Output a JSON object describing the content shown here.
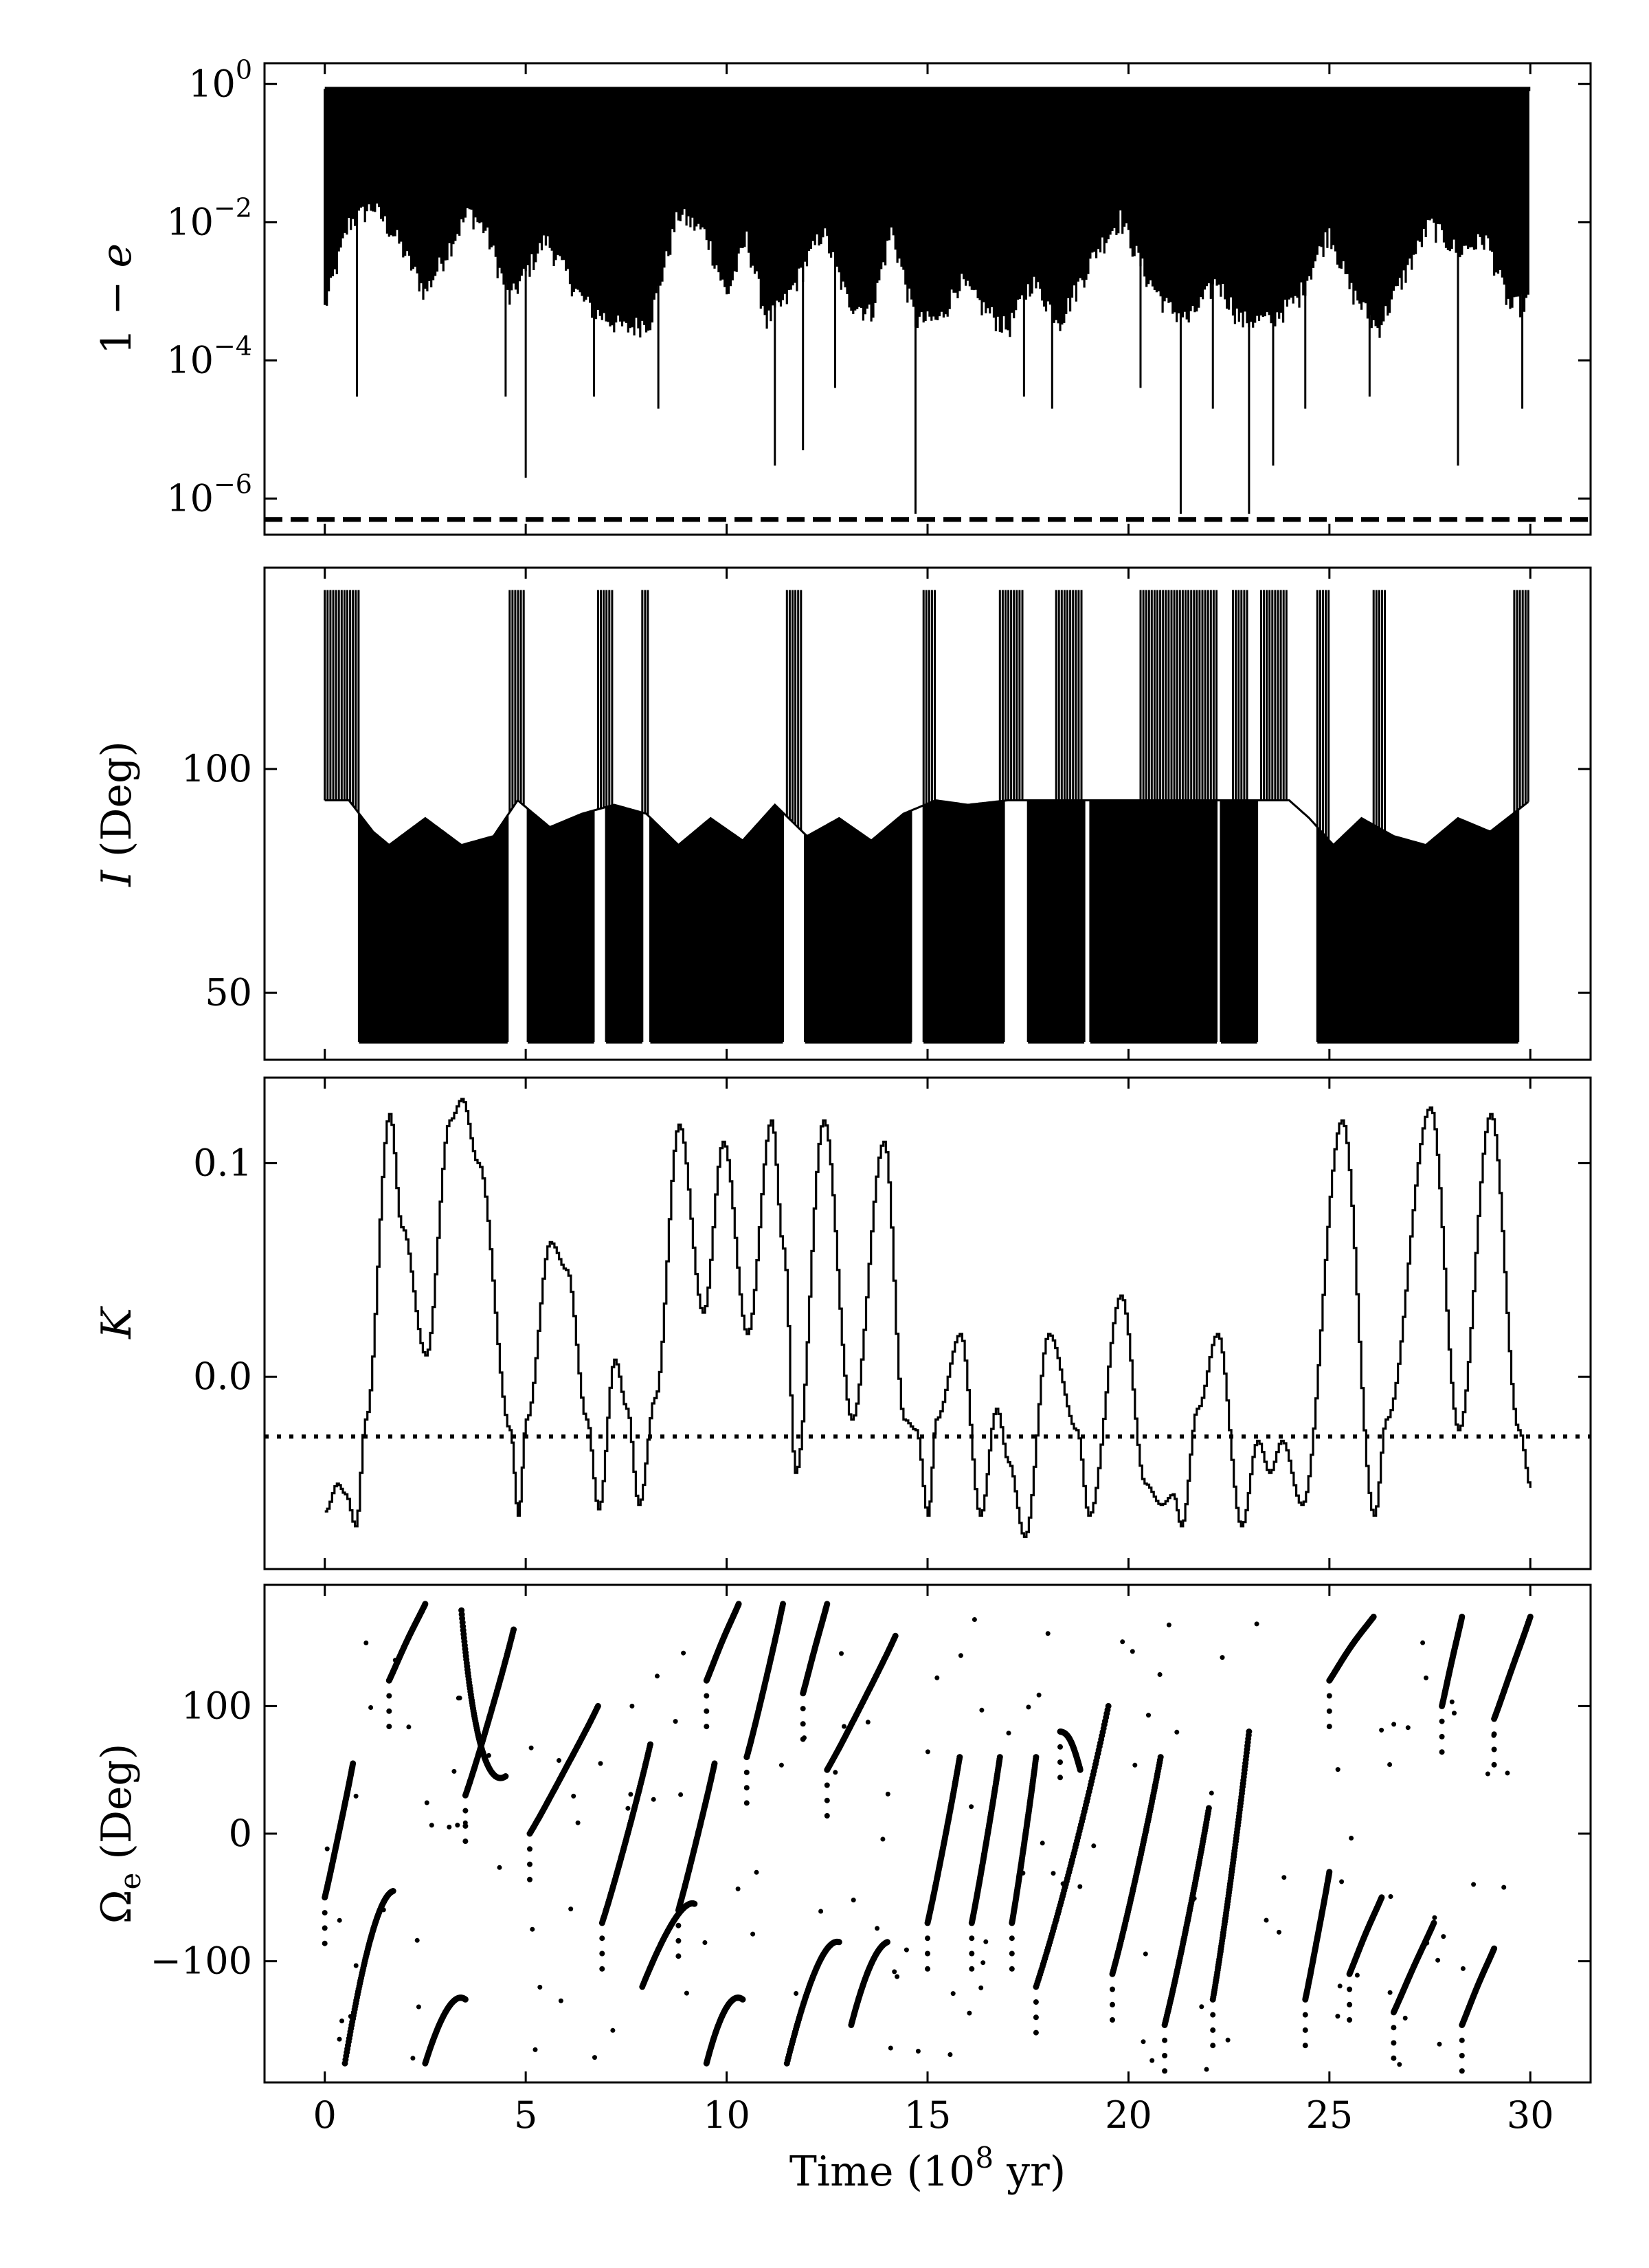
{
  "chart_data": [
    {
      "type": "line",
      "panel": "eccentricity",
      "ylabel": "1 − e",
      "yscale": "log",
      "ylim": [
        3e-07,
        2
      ],
      "xlim": [
        -1.5,
        31.5
      ],
      "yticks": [
        1,
        0.01,
        0.0001,
        1e-06
      ],
      "ytick_labels": [
        "10^0",
        "10^-2",
        "10^-4",
        "10^-6"
      ],
      "upper_value": 0.85,
      "envelope": [
        [
          0.0,
          0.0006
        ],
        [
          0.6,
          0.01
        ],
        [
          1.2,
          0.018
        ],
        [
          1.8,
          0.006
        ],
        [
          2.5,
          0.001
        ],
        [
          3.2,
          0.006
        ],
        [
          3.6,
          0.015
        ],
        [
          4.0,
          0.008
        ],
        [
          4.6,
          0.0008
        ],
        [
          5.5,
          0.006
        ],
        [
          6.4,
          0.0008
        ],
        [
          6.8,
          0.0005
        ],
        [
          7.5,
          0.0003
        ],
        [
          8.1,
          0.0004
        ],
        [
          8.8,
          0.014
        ],
        [
          9.5,
          0.007
        ],
        [
          10.0,
          0.0009
        ],
        [
          10.5,
          0.006
        ],
        [
          11.0,
          0.0004
        ],
        [
          11.5,
          0.0008
        ],
        [
          12.4,
          0.008
        ],
        [
          13.0,
          0.0008
        ],
        [
          13.6,
          0.0005
        ],
        [
          14.1,
          0.008
        ],
        [
          14.7,
          0.0004
        ],
        [
          15.3,
          0.0004
        ],
        [
          15.8,
          0.0015
        ],
        [
          16.4,
          0.0006
        ],
        [
          17.0,
          0.0003
        ],
        [
          17.6,
          0.0015
        ],
        [
          18.3,
          0.0004
        ],
        [
          19.2,
          0.004
        ],
        [
          19.8,
          0.012
        ],
        [
          20.5,
          0.0015
        ],
        [
          21.0,
          0.0006
        ],
        [
          21.5,
          0.0004
        ],
        [
          22.2,
          0.0015
        ],
        [
          22.8,
          0.0004
        ],
        [
          23.5,
          0.0004
        ],
        [
          24.2,
          0.0008
        ],
        [
          25.0,
          0.008
        ],
        [
          25.5,
          0.0012
        ],
        [
          26.2,
          0.0003
        ],
        [
          26.8,
          0.0015
        ],
        [
          27.5,
          0.01
        ],
        [
          28.2,
          0.004
        ],
        [
          28.9,
          0.006
        ],
        [
          29.5,
          0.0006
        ],
        [
          30.0,
          0.0008
        ]
      ],
      "spikes": [
        [
          0.8,
          3e-05
        ],
        [
          4.5,
          3e-05
        ],
        [
          5.0,
          2e-06
        ],
        [
          6.7,
          3e-05
        ],
        [
          8.3,
          2e-05
        ],
        [
          11.2,
          3e-06
        ],
        [
          11.9,
          5e-06
        ],
        [
          12.7,
          4e-05
        ],
        [
          14.7,
          6e-07
        ],
        [
          17.4,
          3e-05
        ],
        [
          18.1,
          2e-05
        ],
        [
          20.3,
          4e-05
        ],
        [
          21.3,
          6e-07
        ],
        [
          22.1,
          2e-05
        ],
        [
          23.0,
          6e-07
        ],
        [
          23.6,
          3e-06
        ],
        [
          24.4,
          2e-05
        ],
        [
          26.0,
          3e-05
        ],
        [
          28.2,
          3e-06
        ],
        [
          29.8,
          2e-05
        ]
      ],
      "threshold": {
        "value": 5e-07,
        "style": "dashed"
      }
    },
    {
      "type": "line",
      "panel": "inclination",
      "ylabel": "I (Deg)",
      "ylim": [
        35,
        145
      ],
      "xlim": [
        -1.5,
        31.5
      ],
      "yticks": [
        50,
        100
      ],
      "ytick_labels": [
        "50",
        "100"
      ],
      "min_value": 39,
      "max_value": 140,
      "baseline_envelope": [
        [
          0.0,
          93
        ],
        [
          0.6,
          93
        ],
        [
          1.2,
          86
        ],
        [
          1.6,
          83
        ],
        [
          2.5,
          89
        ],
        [
          3.4,
          83
        ],
        [
          4.2,
          85
        ],
        [
          4.8,
          93
        ],
        [
          5.6,
          87
        ],
        [
          6.4,
          90
        ],
        [
          7.2,
          92
        ],
        [
          8.0,
          90
        ],
        [
          8.8,
          83
        ],
        [
          9.6,
          89
        ],
        [
          10.4,
          84
        ],
        [
          11.2,
          92
        ],
        [
          12.0,
          85
        ],
        [
          12.8,
          89
        ],
        [
          13.6,
          84
        ],
        [
          14.4,
          90
        ],
        [
          15.2,
          93
        ],
        [
          16.0,
          92
        ],
        [
          17.0,
          93
        ],
        [
          18.0,
          93
        ],
        [
          19.0,
          93
        ],
        [
          20.0,
          93
        ],
        [
          21.0,
          93
        ],
        [
          22.0,
          93
        ],
        [
          23.0,
          93
        ],
        [
          24.0,
          93
        ],
        [
          24.5,
          89
        ],
        [
          25.1,
          83
        ],
        [
          25.8,
          89
        ],
        [
          26.6,
          85
        ],
        [
          27.4,
          83
        ],
        [
          28.2,
          89
        ],
        [
          29.0,
          86
        ],
        [
          30.0,
          93
        ]
      ],
      "dense_bands": [
        [
          0.85,
          4.55
        ],
        [
          5.05,
          6.7
        ],
        [
          7.0,
          7.9
        ],
        [
          8.1,
          11.4
        ],
        [
          11.95,
          14.6
        ],
        [
          14.9,
          16.9
        ],
        [
          17.5,
          18.9
        ],
        [
          19.05,
          22.2
        ],
        [
          22.3,
          23.2
        ],
        [
          24.7,
          29.7
        ]
      ],
      "spike_groups": [
        [
          0.0,
          0.9
        ],
        [
          4.6,
          5.0
        ],
        [
          6.8,
          7.2
        ],
        [
          7.9,
          8.1
        ],
        [
          11.5,
          11.9
        ],
        [
          14.9,
          15.2
        ],
        [
          16.8,
          17.4
        ],
        [
          18.2,
          18.9
        ],
        [
          20.3,
          22.2
        ],
        [
          22.6,
          23.0
        ],
        [
          23.3,
          24.0
        ],
        [
          24.7,
          25.0
        ],
        [
          26.1,
          26.4
        ],
        [
          29.6,
          30.0
        ]
      ]
    },
    {
      "type": "line",
      "panel": "K",
      "ylabel": "K",
      "ylim": [
        -0.09,
        0.14
      ],
      "xlim": [
        -1.5,
        31.5
      ],
      "yticks": [
        0.1,
        0.0
      ],
      "ytick_labels": [
        "0.1",
        "0.0"
      ],
      "x": [
        0.0,
        0.3,
        0.5,
        0.75,
        1.0,
        1.6,
        1.9,
        2.5,
        3.1,
        3.4,
        3.8,
        4.6,
        4.8,
        5.0,
        5.6,
        6.0,
        6.5,
        6.8,
        7.2,
        7.5,
        7.8,
        8.2,
        8.8,
        9.4,
        9.9,
        10.5,
        11.1,
        11.4,
        11.7,
        12.4,
        13.1,
        13.9,
        14.4,
        14.7,
        15.0,
        15.2,
        15.8,
        16.3,
        16.7,
        17.0,
        17.4,
        18.0,
        18.7,
        19.0,
        19.8,
        20.4,
        20.8,
        21.1,
        21.3,
        21.7,
        22.2,
        22.8,
        23.2,
        23.5,
        23.8,
        24.3,
        25.3,
        26.1,
        26.4,
        27.5,
        28.2,
        29.0,
        29.7,
        30.0
      ],
      "y": [
        -0.063,
        -0.05,
        -0.055,
        -0.07,
        -0.02,
        0.123,
        0.07,
        0.01,
        0.12,
        0.13,
        0.1,
        -0.025,
        -0.065,
        -0.02,
        0.063,
        0.05,
        -0.02,
        -0.062,
        0.008,
        -0.015,
        -0.06,
        -0.01,
        0.118,
        0.03,
        0.11,
        0.02,
        0.12,
        0.06,
        -0.045,
        0.12,
        -0.02,
        0.11,
        -0.02,
        -0.025,
        -0.065,
        -0.02,
        0.02,
        -0.065,
        -0.015,
        -0.04,
        -0.075,
        0.02,
        -0.025,
        -0.065,
        0.038,
        -0.05,
        -0.06,
        -0.055,
        -0.07,
        -0.015,
        0.02,
        -0.07,
        -0.03,
        -0.045,
        -0.03,
        -0.06,
        0.12,
        -0.065,
        -0.02,
        0.126,
        -0.025,
        0.123,
        -0.025,
        -0.052
      ],
      "threshold": {
        "value": -0.028,
        "style": "dotted"
      }
    },
    {
      "type": "scatter",
      "panel": "Omega_e",
      "ylabel": "Ωe (Deg)",
      "xlabel": "Time (10^8 yr)",
      "ylim": [
        -195,
        195
      ],
      "xlim": [
        -1.5,
        31.5
      ],
      "yticks": [
        100,
        0,
        -100
      ],
      "ytick_labels": [
        "100",
        "0",
        "−100"
      ],
      "xticks": [
        0,
        5,
        10,
        15,
        20,
        25,
        30
      ],
      "xtick_labels": [
        "0",
        "5",
        "10",
        "15",
        "20",
        "25",
        "30"
      ],
      "segments": [
        [
          0.0,
          -50,
          0.7,
          55
        ],
        [
          1.6,
          120,
          2.5,
          180
        ],
        [
          3.5,
          30,
          4.7,
          160
        ],
        [
          5.1,
          0,
          6.8,
          100
        ],
        [
          6.9,
          -70,
          8.1,
          70
        ],
        [
          8.8,
          -60,
          9.7,
          55
        ],
        [
          9.5,
          120,
          10.3,
          180
        ],
        [
          10.5,
          60,
          11.4,
          180
        ],
        [
          11.9,
          110,
          12.5,
          180
        ],
        [
          12.5,
          50,
          14.2,
          155
        ],
        [
          15.0,
          -70,
          15.8,
          60
        ],
        [
          16.1,
          -70,
          16.8,
          60
        ],
        [
          17.1,
          -70,
          17.7,
          60
        ],
        [
          17.7,
          -120,
          19.5,
          100
        ],
        [
          18.3,
          80,
          18.8,
          50
        ],
        [
          19.6,
          -110,
          20.8,
          60
        ],
        [
          20.9,
          -150,
          22.0,
          20
        ],
        [
          22.1,
          -130,
          23.0,
          80
        ],
        [
          24.4,
          -130,
          25.0,
          -30
        ],
        [
          25.0,
          120,
          26.1,
          170
        ],
        [
          25.5,
          -110,
          26.3,
          -50
        ],
        [
          26.6,
          -140,
          27.6,
          -70
        ],
        [
          27.8,
          100,
          28.3,
          170
        ],
        [
          28.3,
          -150,
          29.1,
          -90
        ],
        [
          29.1,
          90,
          30.0,
          170
        ]
      ],
      "arcs": [
        [
          0.5,
          -180,
          1.2,
          -50,
          1.7,
          -45
        ],
        [
          2.5,
          -180,
          3.1,
          -120,
          3.5,
          -130
        ],
        [
          7.9,
          -120,
          8.8,
          -50,
          9.2,
          -55
        ],
        [
          9.5,
          -180,
          10.0,
          -120,
          10.4,
          -130
        ],
        [
          11.5,
          -180,
          12.3,
          -80,
          12.8,
          -85
        ],
        [
          13.1,
          -150,
          13.6,
          -90,
          14.0,
          -85
        ],
        [
          3.4,
          175,
          3.8,
          30,
          4.5,
          45
        ]
      ]
    }
  ]
}
